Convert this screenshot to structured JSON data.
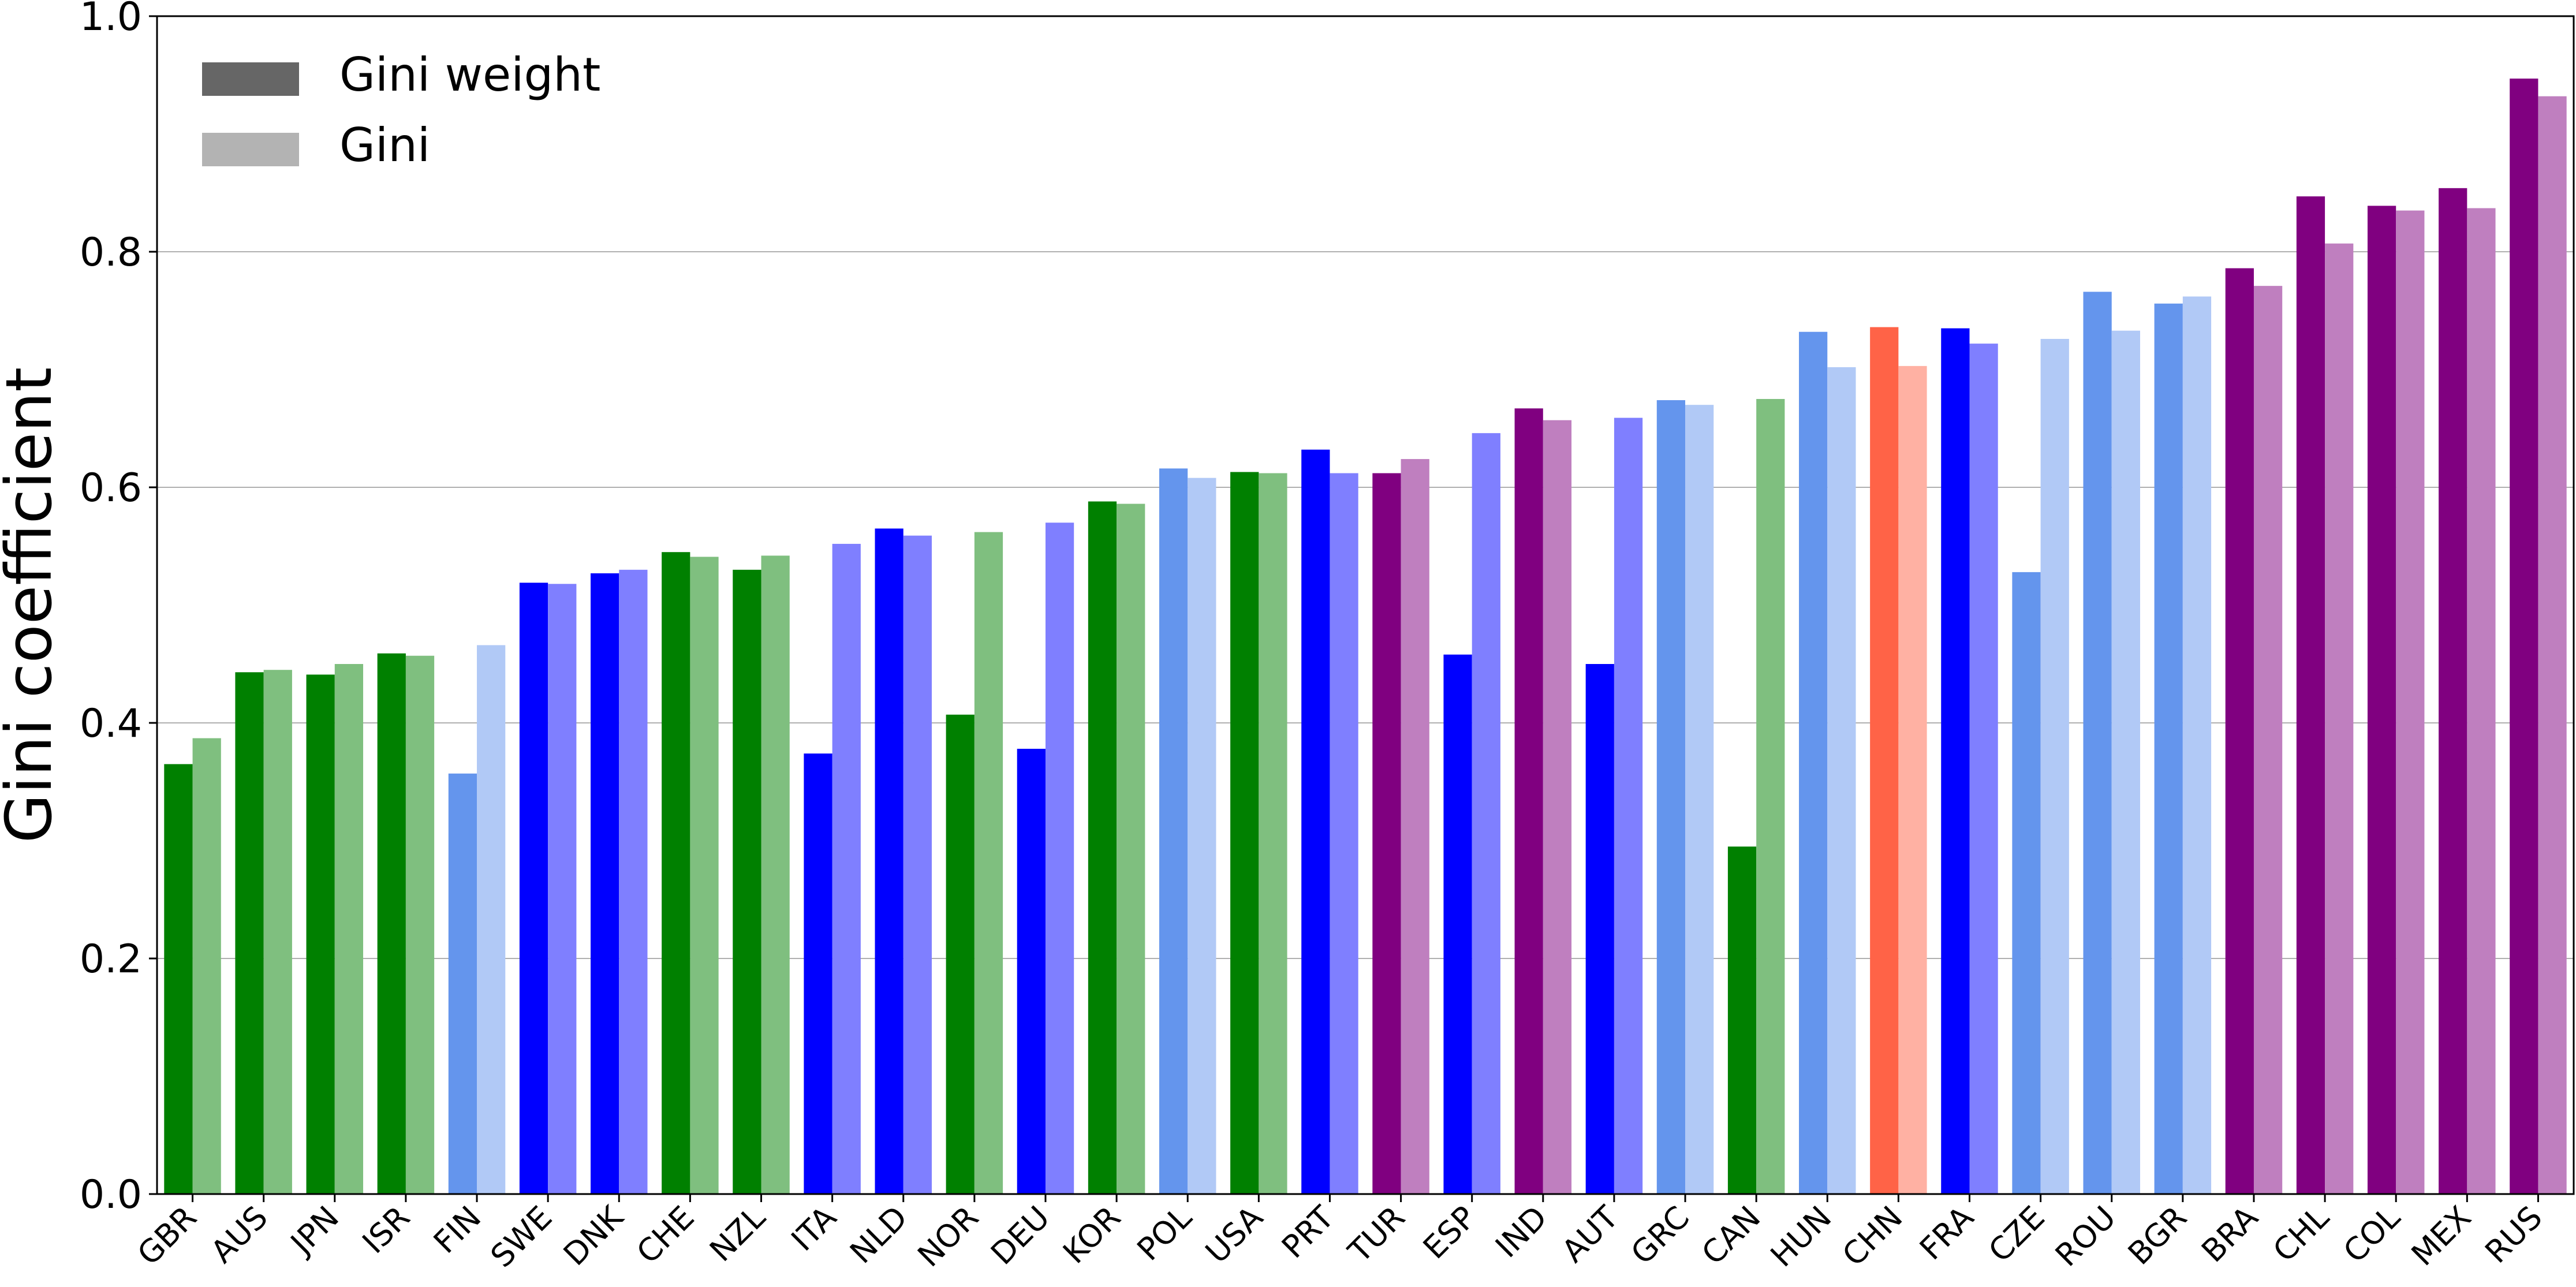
{
  "chart_data": {
    "type": "bar",
    "title": "",
    "xlabel": "",
    "ylabel": "Gini coefficient",
    "ylim": [
      0.0,
      1.0
    ],
    "yticks": [
      "0.0",
      "0.2",
      "0.4",
      "0.6",
      "0.8",
      "1.0"
    ],
    "grid": "horizontal",
    "legend_placement": "top-left",
    "legend": [
      {
        "label": "Gini weight",
        "color": "#666666"
      },
      {
        "label": "Gini",
        "color": "#b3b3b3"
      }
    ],
    "categories": [
      "GBR",
      "AUS",
      "JPN",
      "ISR",
      "FIN",
      "SWE",
      "DNK",
      "CHE",
      "NZL",
      "ITA",
      "NLD",
      "NOR",
      "DEU",
      "KOR",
      "POL",
      "USA",
      "PRT",
      "TUR",
      "ESP",
      "IND",
      "AUT",
      "GRC",
      "CAN",
      "HUN",
      "CHN",
      "FRA",
      "CZE",
      "ROU",
      "BGR",
      "BRA",
      "CHL",
      "COL",
      "MEX",
      "RUS"
    ],
    "group": [
      "green",
      "green",
      "green",
      "green",
      "cornflower",
      "blue",
      "blue",
      "green",
      "green",
      "blue",
      "blue",
      "green",
      "blue",
      "green",
      "cornflower",
      "green",
      "blue",
      "purple",
      "blue",
      "purple",
      "blue",
      "cornflower",
      "green",
      "cornflower",
      "tomato",
      "blue",
      "cornflower",
      "cornflower",
      "cornflower",
      "purple",
      "purple",
      "purple",
      "purple",
      "purple"
    ],
    "series": [
      {
        "name": "Gini weight",
        "values": [
          0.365,
          0.443,
          0.441,
          0.459,
          0.357,
          0.519,
          0.527,
          0.545,
          0.53,
          0.374,
          0.565,
          0.407,
          0.378,
          0.588,
          0.616,
          0.613,
          0.632,
          0.612,
          0.458,
          0.667,
          0.45,
          0.674,
          0.295,
          0.732,
          0.736,
          0.735,
          0.528,
          0.766,
          0.756,
          0.786,
          0.847,
          0.839,
          0.854,
          0.947
        ]
      },
      {
        "name": "Gini",
        "values": [
          0.387,
          0.445,
          0.45,
          0.457,
          0.466,
          0.518,
          0.53,
          0.541,
          0.542,
          0.552,
          0.559,
          0.562,
          0.57,
          0.586,
          0.608,
          0.612,
          0.612,
          0.624,
          0.646,
          0.657,
          0.659,
          0.67,
          0.675,
          0.702,
          0.703,
          0.722,
          0.726,
          0.733,
          0.762,
          0.771,
          0.807,
          0.835,
          0.837,
          0.932
        ]
      }
    ],
    "colors": {
      "green": {
        "dark": "#008000",
        "light": "#7fbf7f"
      },
      "blue": {
        "dark": "#0000ff",
        "light": "#7f7fff"
      },
      "cornflower": {
        "dark": "#6495ed",
        "light": "#b1c9f6"
      },
      "purple": {
        "dark": "#800080",
        "light": "#bf7fbf"
      },
      "tomato": {
        "dark": "#ff6347",
        "light": "#ffb1a3"
      }
    }
  }
}
